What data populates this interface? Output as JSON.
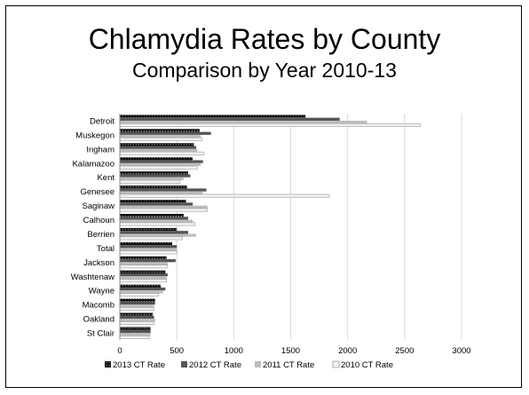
{
  "title": "Chlamydia Rates by County",
  "subtitle": "Comparison by Year 2010-13",
  "chart_data": {
    "type": "bar",
    "orientation": "horizontal",
    "categories": [
      "Detroit",
      "Muskegon",
      "Ingham",
      "Kalamazoo",
      "Kent",
      "Genesee",
      "Saginaw",
      "Calhoun",
      "Berrien",
      "Total",
      "Jackson",
      "Washtenaw",
      "Wayne",
      "Macomb",
      "Oakland",
      "St Clair"
    ],
    "series": [
      {
        "name": "2013 CT Rate",
        "color": "#1a1a1a",
        "values": [
          1630,
          700,
          650,
          640,
          600,
          590,
          580,
          560,
          500,
          460,
          410,
          400,
          360,
          310,
          290,
          270
        ]
      },
      {
        "name": "2012 CT Rate",
        "color": "#555555",
        "values": [
          1930,
          800,
          670,
          730,
          620,
          760,
          640,
          600,
          600,
          500,
          490,
          420,
          400,
          310,
          300,
          270
        ]
      },
      {
        "name": "2011 CT Rate",
        "color": "#bdbdbd",
        "values": [
          2170,
          710,
          680,
          710,
          560,
          730,
          770,
          640,
          670,
          500,
          420,
          410,
          380,
          300,
          310,
          270
        ]
      },
      {
        "name": "2010 CT Rate",
        "color": "#f2f2f2",
        "values": [
          2640,
          720,
          740,
          680,
          530,
          1840,
          770,
          660,
          550,
          500,
          420,
          410,
          340,
          300,
          300,
          260
        ]
      }
    ],
    "xlim": [
      0,
      3000
    ],
    "xticks": [
      0,
      500,
      1000,
      1500,
      2000,
      2500,
      3000
    ],
    "grid": true,
    "legend": "bottom"
  }
}
